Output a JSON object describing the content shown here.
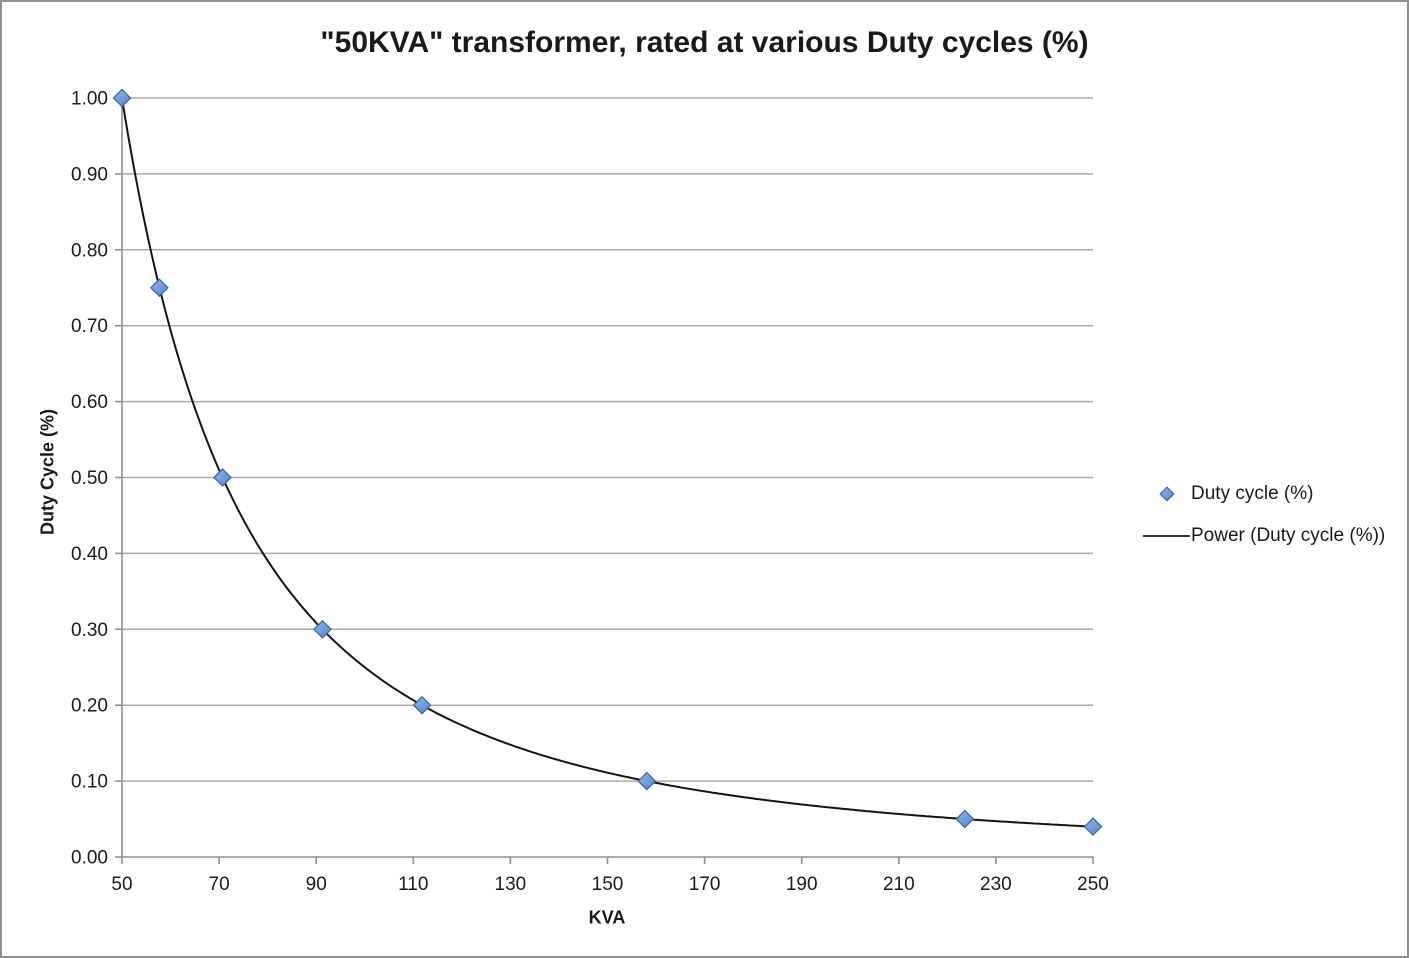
{
  "chart_data": {
    "type": "scatter",
    "title": "\"50KVA\" transformer, rated at various Duty cycles (%)",
    "xlabel": "KVA",
    "ylabel": "Duty Cycle (%)",
    "xlim": [
      50,
      250
    ],
    "ylim": [
      0,
      1
    ],
    "xticks": [
      50,
      70,
      90,
      110,
      130,
      150,
      170,
      190,
      210,
      230,
      250
    ],
    "xtick_labels": [
      "50",
      "70",
      "90",
      "110",
      "130",
      "150",
      "170",
      "190",
      "210",
      "230",
      "250"
    ],
    "yticks": [
      0,
      0.1,
      0.2,
      0.3,
      0.4,
      0.5,
      0.6,
      0.7,
      0.8,
      0.9,
      1.0
    ],
    "ytick_labels": [
      "0.00",
      "0.10",
      "0.20",
      "0.30",
      "0.40",
      "0.50",
      "0.60",
      "0.70",
      "0.80",
      "0.90",
      "1.00"
    ],
    "grid": "horizontal-only",
    "legend_position": "right-middle",
    "series": [
      {
        "name": "Duty cycle (%)",
        "type": "scatter",
        "marker": "diamond",
        "x": [
          50,
          57.7,
          70.7,
          91.3,
          111.8,
          158.1,
          223.6,
          250
        ],
        "y": [
          1.0,
          0.75,
          0.5,
          0.3,
          0.2,
          0.1,
          0.05,
          0.04
        ]
      },
      {
        "name": "Power (Duty cycle (%))",
        "type": "power-trendline",
        "fit_of_series": "Duty cycle (%)"
      }
    ]
  },
  "colors": {
    "marker_fill_light": "#93b5e6",
    "marker_fill_dark": "#5584cb",
    "marker_stroke": "#3c6aa8",
    "trendline": "#141414",
    "gridline": "#ababab",
    "axis": "#8f8f8f",
    "text": "#1a1a1a",
    "frame_border": "#8f8f8f",
    "background": "#ffffff"
  }
}
